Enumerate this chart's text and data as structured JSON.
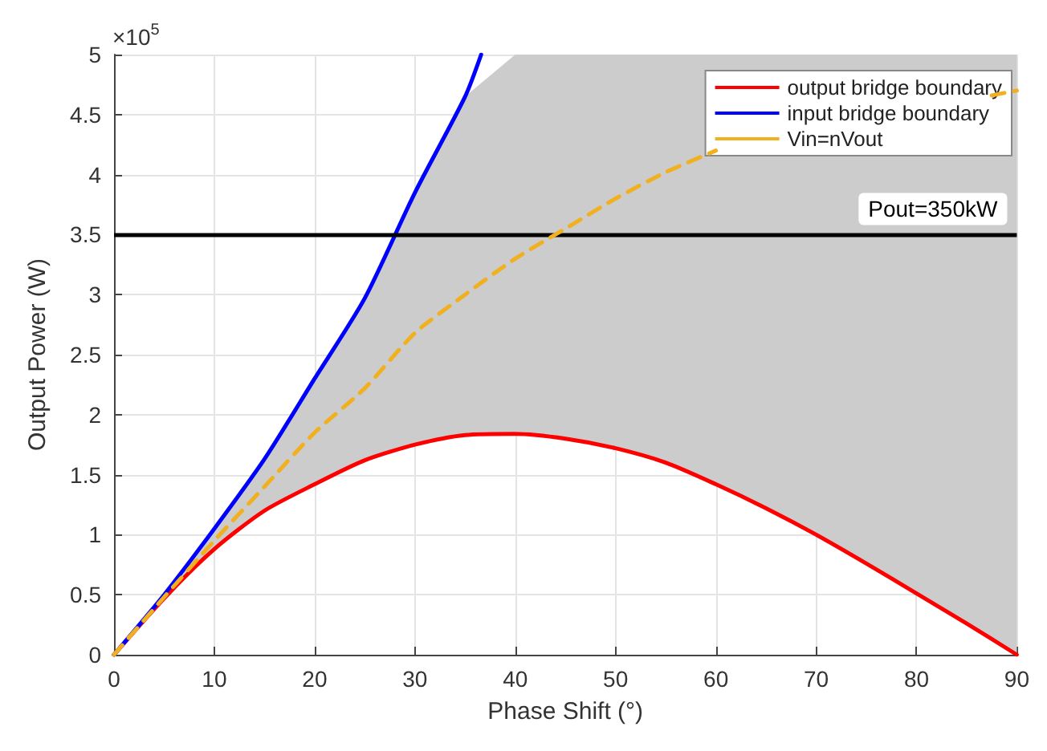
{
  "chart_data": {
    "type": "line",
    "xlabel": "Phase Shift (°)",
    "ylabel": "Output Power (W)",
    "xlim": [
      0,
      90
    ],
    "xticks": [
      0,
      10,
      20,
      30,
      40,
      50,
      60,
      70,
      80,
      90
    ],
    "ylim": [
      0,
      5
    ],
    "yticks": [
      0,
      0.5,
      1,
      1.5,
      2,
      2.5,
      3,
      3.5,
      4,
      4.5,
      5
    ],
    "annotations": [
      "×10$^{5}$"
    ],
    "grid": true,
    "legend": "top right",
    "marker": "none",
    "series": [
      {
        "name": "output bridge boundary",
        "color": "#ff0000",
        "line_style": "solid",
        "x": [
          0,
          5,
          10,
          15,
          20,
          25,
          30,
          35,
          40,
          45,
          50,
          55,
          60,
          65,
          70,
          75,
          80,
          85,
          90
        ],
        "values": [
          0,
          0.47,
          0.88,
          1.2,
          1.42,
          1.62,
          1.75,
          1.83,
          1.84,
          1.8,
          1.72,
          1.6,
          1.42,
          1.22,
          1.0,
          0.76,
          0.51,
          0.26,
          0
        ],
        "lower": [
          0,
          0.47,
          0.88,
          1.2,
          1.42,
          1.62,
          1.75,
          1.83,
          1.84,
          1.8,
          1.72,
          1.6,
          1.42,
          1.22,
          1.0,
          0.76,
          0.51,
          0.26,
          0
        ],
        "upper": [
          0,
          0.5,
          1.05,
          1.63,
          2.3,
          2.97,
          3.85,
          4.65,
          5,
          5,
          5,
          5,
          5,
          5,
          5,
          5,
          5,
          5,
          5
        ]
      },
      {
        "name": "input bridge boundary",
        "color": "#0000ff",
        "line_style": "solid",
        "x": [
          0,
          5,
          10,
          15,
          20,
          25,
          30,
          35,
          36.6
        ],
        "values": [
          0,
          0.5,
          1.05,
          1.63,
          2.3,
          2.97,
          3.85,
          4.65,
          5
        ]
      },
      {
        "name": "Vin=nVout",
        "color": "#f0b020",
        "line_style": "dashed",
        "x": [
          0,
          5,
          10,
          15,
          20,
          25,
          30,
          35,
          40,
          45,
          50,
          55,
          60,
          65,
          70,
          75,
          80,
          85,
          87.5,
          90
        ],
        "values": [
          0,
          0.48,
          0.95,
          1.4,
          1.85,
          2.22,
          2.68,
          3.0,
          3.3,
          3.55,
          3.8,
          4.02,
          4.2,
          null,
          null,
          null,
          null,
          null,
          4.66,
          4.7
        ]
      }
    ],
    "ref_lines": [
      {
        "axis": "y",
        "value": 3.5,
        "label": "Pout=350kW",
        "color": "#000000",
        "line_style": "solid"
      }
    ]
  }
}
